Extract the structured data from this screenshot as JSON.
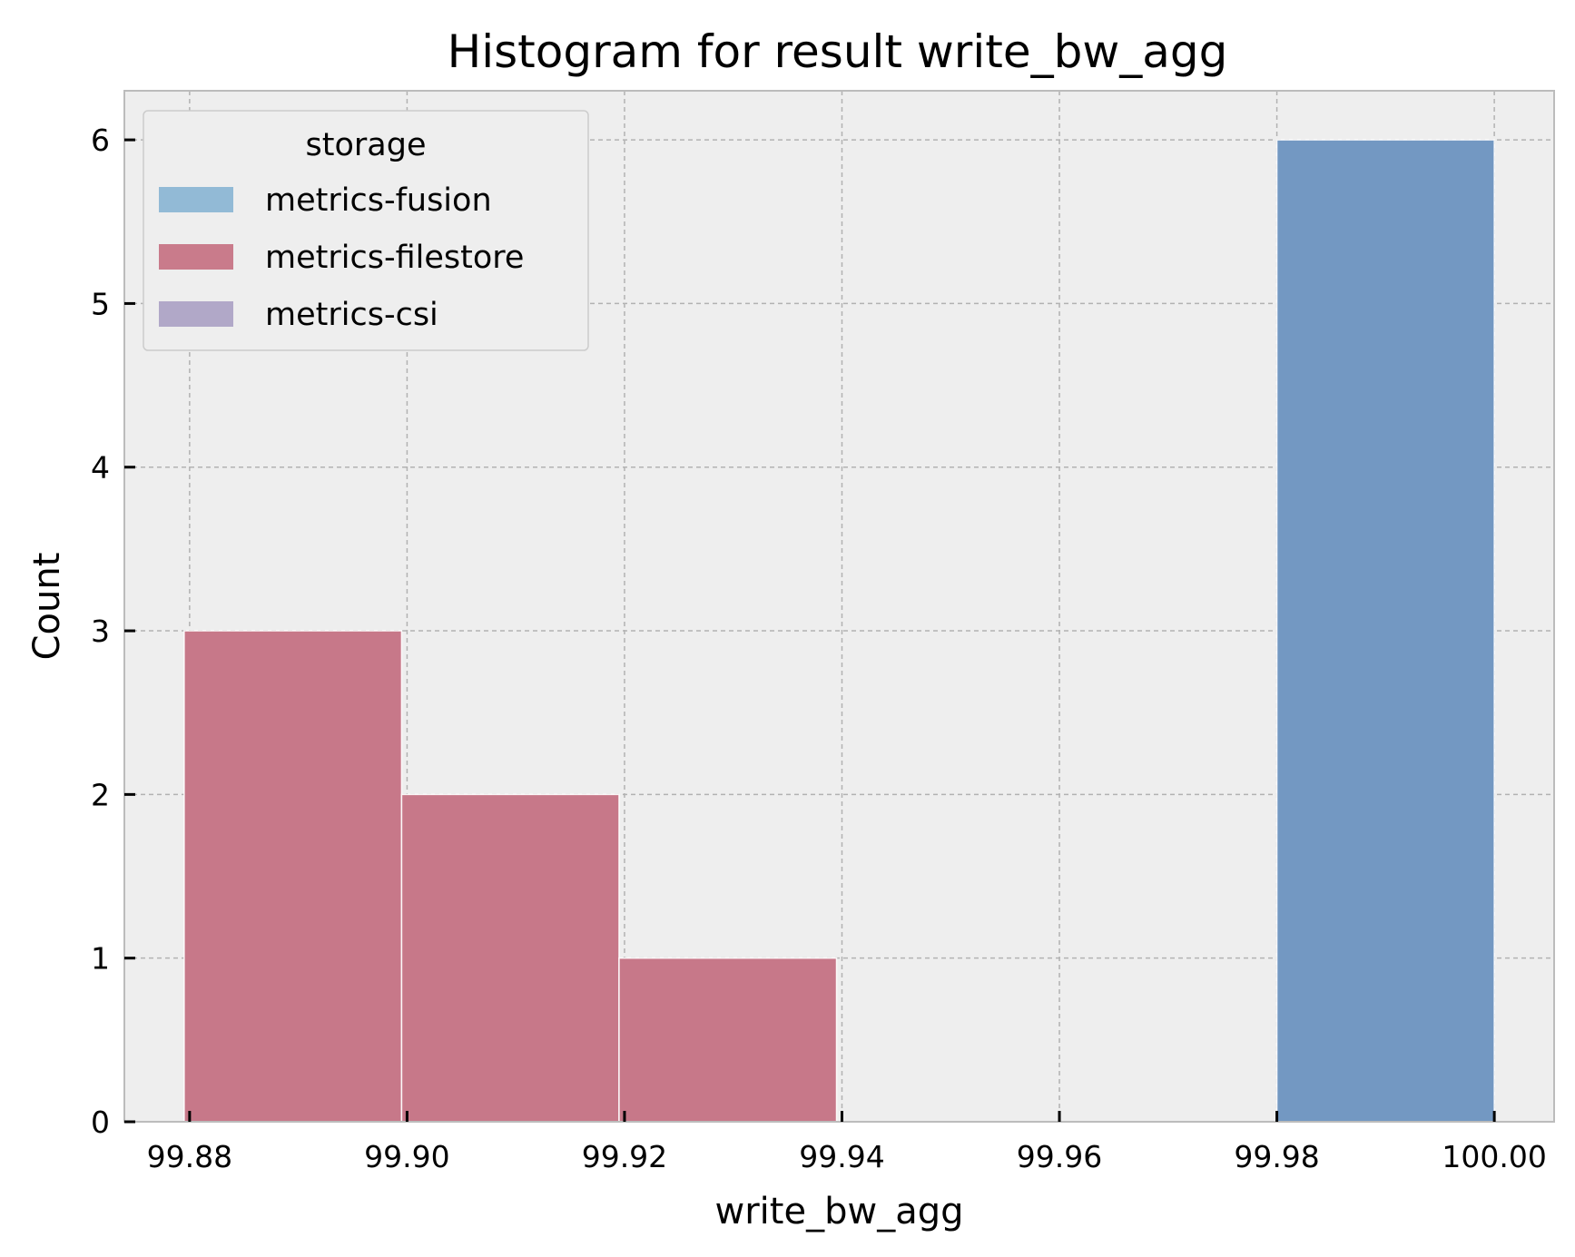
{
  "chart_data": {
    "type": "bar",
    "title": "Histogram for result write_bw_agg",
    "xlabel": "write_bw_agg",
    "ylabel": "Count",
    "xlim": [
      99.874,
      100.0055
    ],
    "ylim": [
      0,
      6.3
    ],
    "xticks": [
      "99.88",
      "99.90",
      "99.92",
      "99.94",
      "99.96",
      "99.98",
      "100.00"
    ],
    "xtick_values": [
      99.88,
      99.9,
      99.92,
      99.94,
      99.96,
      99.98,
      100.0
    ],
    "yticks": [
      "0",
      "1",
      "2",
      "3",
      "4",
      "5",
      "6"
    ],
    "ytick_values": [
      0,
      1,
      2,
      3,
      4,
      5,
      6
    ],
    "grid": true,
    "legend": {
      "title": "storage",
      "position": "top-left"
    },
    "series": [
      {
        "name": "metrics-fusion",
        "legend_color": "#92bad6",
        "bar_color": "#7398c2",
        "bins": [
          {
            "x0": 99.98,
            "x1": 100.0,
            "count": 6
          }
        ]
      },
      {
        "name": "metrics-filestore",
        "legend_color": "#c97b8b",
        "bar_color": "#c77889",
        "bins": [
          {
            "x0": 99.8795,
            "x1": 99.8995,
            "count": 3
          },
          {
            "x0": 99.8995,
            "x1": 99.9195,
            "count": 2
          },
          {
            "x0": 99.9195,
            "x1": 99.9395,
            "count": 1
          }
        ]
      },
      {
        "name": "metrics-csi",
        "legend_color": "#b1a8c8",
        "bar_color": "#b1a8c8",
        "bins": []
      }
    ]
  }
}
